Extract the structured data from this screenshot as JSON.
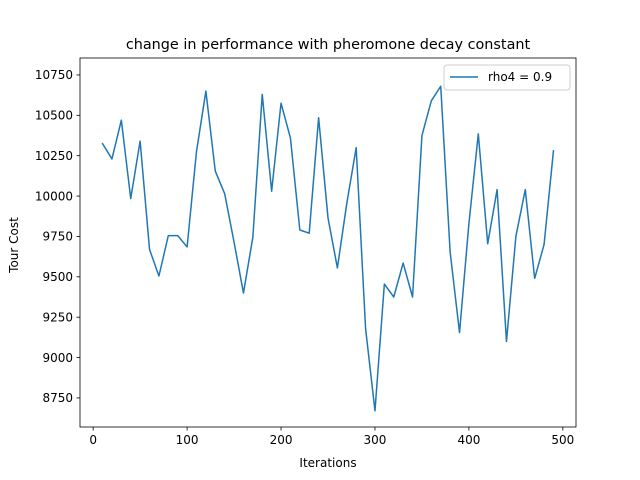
{
  "chart_data": {
    "type": "line",
    "title": "change in performance with pheromone decay constant",
    "xlabel": "Iterations",
    "ylabel": "Tour Cost",
    "xlim": [
      -14,
      514
    ],
    "ylim": [
      8570,
      10855
    ],
    "xticks": [
      0,
      100,
      200,
      300,
      400,
      500
    ],
    "yticks": [
      8750,
      9000,
      9250,
      9500,
      9750,
      10000,
      10250,
      10500,
      10750
    ],
    "grid": false,
    "legend_position": "top-right",
    "series": [
      {
        "name": "rho4 = 0.9",
        "color": "#1f77b4",
        "x": [
          10,
          20,
          30,
          40,
          50,
          60,
          70,
          80,
          90,
          100,
          110,
          120,
          130,
          140,
          150,
          160,
          170,
          180,
          190,
          200,
          210,
          220,
          230,
          240,
          250,
          260,
          270,
          280,
          290,
          300,
          310,
          320,
          330,
          340,
          350,
          360,
          370,
          380,
          390,
          400,
          410,
          420,
          430,
          440,
          450,
          460,
          470,
          480,
          490
        ],
        "y": [
          10325,
          10230,
          10470,
          9985,
          10340,
          9670,
          9505,
          9755,
          9755,
          9685,
          10275,
          10650,
          10155,
          10015,
          9715,
          9400,
          9745,
          10630,
          10030,
          10575,
          10360,
          9790,
          9770,
          10485,
          9865,
          9555,
          9955,
          10300,
          9180,
          8670,
          9455,
          9375,
          9585,
          9375,
          10375,
          10590,
          10680,
          9655,
          9155,
          9830,
          10385,
          9705,
          10040,
          9100,
          9750,
          10040,
          9490,
          9700,
          10280
        ]
      }
    ]
  }
}
